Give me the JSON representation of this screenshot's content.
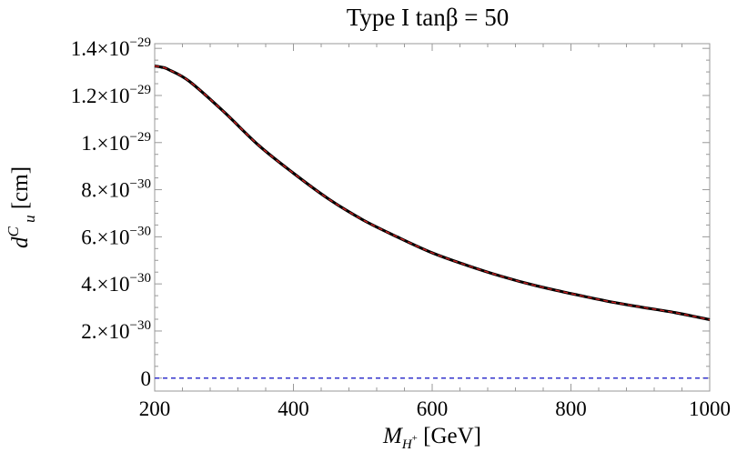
{
  "chart_data": {
    "type": "line",
    "title": "Type I     tanβ = 50",
    "xlabel": "M_{H⁺} [GeV]",
    "ylabel": "d^C_u [cm]",
    "xlim": [
      200,
      1000
    ],
    "ylim": [
      -5.5e-31,
      1.42e-29
    ],
    "x_ticks": [
      200,
      400,
      600,
      800,
      1000
    ],
    "y_ticks": [
      {
        "value": 0,
        "mantissa": "0",
        "exp": ""
      },
      {
        "value": 2e-30,
        "mantissa": "2.×10",
        "exp": "−30"
      },
      {
        "value": 4e-30,
        "mantissa": "4.×10",
        "exp": "−30"
      },
      {
        "value": 6e-30,
        "mantissa": "6.×10",
        "exp": "−30"
      },
      {
        "value": 8e-30,
        "mantissa": "8.×10",
        "exp": "−30"
      },
      {
        "value": 1e-29,
        "mantissa": "1.×10",
        "exp": "−29"
      },
      {
        "value": 1.2e-29,
        "mantissa": "1.2×10",
        "exp": "−29"
      },
      {
        "value": 1.4e-29,
        "mantissa": "1.4×10",
        "exp": "−29"
      }
    ],
    "series": [
      {
        "style": "solid",
        "color": "#000000",
        "x": [
          200,
          210,
          220,
          250,
          300,
          350,
          400,
          450,
          500,
          550,
          600,
          650,
          700,
          750,
          800,
          850,
          900,
          950,
          1000
        ],
        "y": [
          1.325e-29,
          1.32e-29,
          1.31e-29,
          1.26e-29,
          1.13e-29,
          9.88e-30,
          8.7e-30,
          7.62e-30,
          6.72e-30,
          5.99e-30,
          5.32e-30,
          4.79e-30,
          4.32e-30,
          3.92e-30,
          3.59e-30,
          3.28e-30,
          3.02e-30,
          2.78e-30,
          2.48e-30
        ]
      },
      {
        "style": "dashed",
        "color": "#cc2222",
        "x": [
          200,
          210,
          220,
          250,
          300,
          350,
          400,
          450,
          500,
          550,
          600,
          650,
          700,
          750,
          800,
          850,
          900,
          950,
          1000
        ],
        "y": [
          1.325e-29,
          1.32e-29,
          1.31e-29,
          1.26e-29,
          1.13e-29,
          9.88e-30,
          8.7e-30,
          7.62e-30,
          6.72e-30,
          5.99e-30,
          5.32e-30,
          4.79e-30,
          4.32e-30,
          3.92e-30,
          3.59e-30,
          3.28e-30,
          3.02e-30,
          2.78e-30,
          2.48e-30
        ]
      },
      {
        "style": "dashed",
        "color": "#3333cc",
        "x": [
          200,
          1000
        ],
        "y": [
          0,
          0
        ]
      }
    ],
    "grid": false,
    "colors": {
      "frame": "#999999",
      "solid": "#000000",
      "red_dash": "#cc2222",
      "blue_dash": "#3333cc"
    }
  }
}
